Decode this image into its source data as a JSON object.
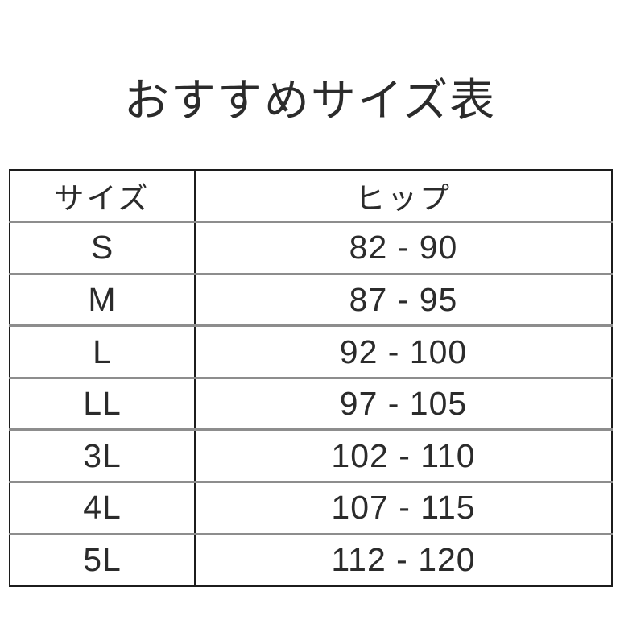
{
  "page_title": "おすすめサイズ表",
  "colors": {
    "background": "#ffffff",
    "text": "#2b2b2b",
    "table_border": "#1c1c1c",
    "row_divider": "#8d8d8d"
  },
  "chart_data": {
    "type": "table",
    "title": "おすすめサイズ表",
    "columns": [
      "サイズ",
      "ヒップ"
    ],
    "rows": [
      {
        "size": "S",
        "hip": "82 - 90"
      },
      {
        "size": "M",
        "hip": "87 - 95"
      },
      {
        "size": "L",
        "hip": "92 - 100"
      },
      {
        "size": "LL",
        "hip": "97 - 105"
      },
      {
        "size": "3L",
        "hip": "102 - 110"
      },
      {
        "size": "4L",
        "hip": "107 - 115"
      },
      {
        "size": "5L",
        "hip": "112 - 120"
      }
    ]
  }
}
